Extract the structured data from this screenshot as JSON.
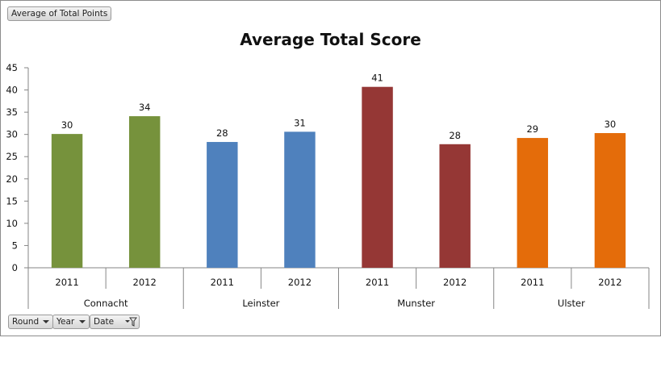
{
  "pivot": {
    "value_field": "Average of Total Points",
    "axis_fields": [
      {
        "label": "Round",
        "icon": "dropdown-arrow-icon"
      },
      {
        "label": "Year",
        "icon": "dropdown-arrow-icon"
      },
      {
        "label": "Date",
        "icon": "filter-dropdown-icon"
      }
    ]
  },
  "colors": {
    "Connacht": "#76923c",
    "Leinster": "#4f81bd",
    "Munster": "#953735",
    "Ulster": "#e46c0a"
  },
  "chart_data": {
    "type": "bar",
    "title": "Average Total Score",
    "xlabel": "",
    "ylabel": "",
    "ylim": [
      0,
      45
    ],
    "yticks": [
      0,
      5,
      10,
      15,
      20,
      25,
      30,
      35,
      40,
      45
    ],
    "grid": false,
    "legend": "none",
    "groups": [
      {
        "name": "Connacht",
        "categories": [
          "2011",
          "2012"
        ],
        "values": [
          30.1,
          34.1
        ],
        "labels": [
          "30",
          "34"
        ]
      },
      {
        "name": "Leinster",
        "categories": [
          "2011",
          "2012"
        ],
        "values": [
          28.3,
          30.6
        ],
        "labels": [
          "28",
          "31"
        ]
      },
      {
        "name": "Munster",
        "categories": [
          "2011",
          "2012"
        ],
        "values": [
          40.7,
          27.8
        ],
        "labels": [
          "41",
          "28"
        ]
      },
      {
        "name": "Ulster",
        "categories": [
          "2011",
          "2012"
        ],
        "values": [
          29.2,
          30.3
        ],
        "labels": [
          "29",
          "30"
        ]
      }
    ]
  }
}
